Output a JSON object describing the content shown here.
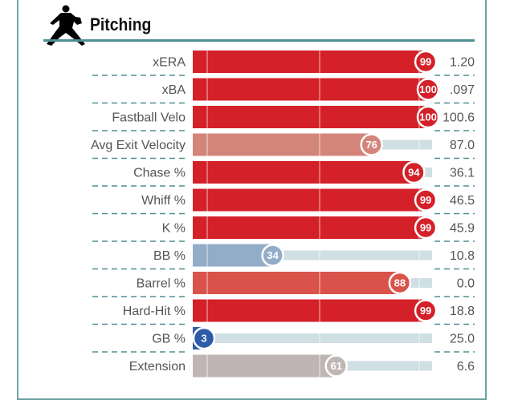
{
  "header": {
    "title": "Pitching",
    "icon": "pitcher-icon"
  },
  "chart_data": {
    "type": "bar",
    "orientation": "horizontal",
    "xlim": [
      0,
      100
    ],
    "categories": [
      "xERA",
      "xBA",
      "Fastball Velo",
      "Avg Exit Velocity",
      "Chase %",
      "Whiff %",
      "K %",
      "BB %",
      "Barrel %",
      "Hard-Hit %",
      "GB %",
      "Extension"
    ],
    "percentiles": [
      99,
      100,
      100,
      76,
      94,
      99,
      99,
      34,
      88,
      99,
      3,
      61
    ],
    "values": [
      "1.20",
      ".097",
      "100.6",
      "87.0",
      "36.1",
      "46.5",
      "45.9",
      "10.8",
      "0.0",
      "18.8",
      "25.0",
      "6.6"
    ],
    "colors": [
      "#d42028",
      "#d42028",
      "#d42028",
      "#d4857a",
      "#d42028",
      "#d42028",
      "#d42028",
      "#93acc8",
      "#d9534a",
      "#d42028",
      "#2e5ba8",
      "#c0b5b5"
    ],
    "track_color": "#cfdfe3",
    "separator_color": "#4f8f92"
  }
}
